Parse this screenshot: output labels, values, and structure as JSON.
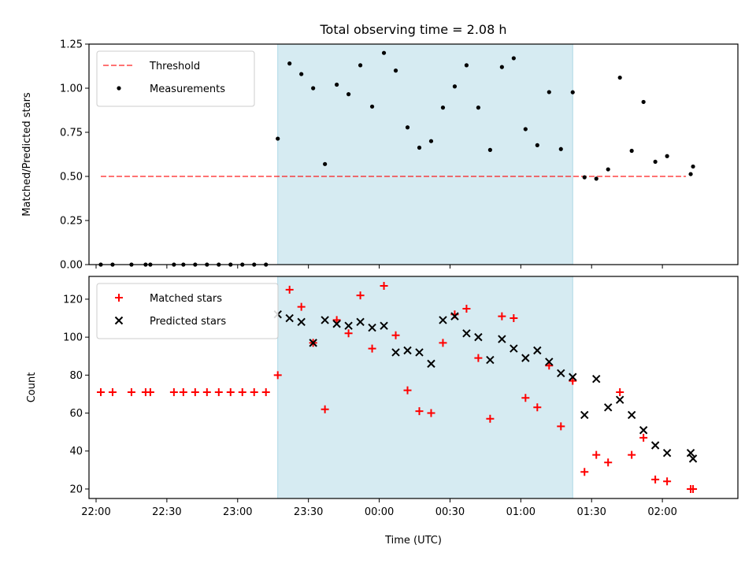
{
  "chart_data": [
    {
      "type": "scatter",
      "title": "Total observing time = 2.08 h",
      "xlabel": "",
      "ylabel": "Matched/Predicted stars",
      "x_unit": "minutes relative to 22:00 UTC",
      "xlim": [
        -3,
        272
      ],
      "ylim": [
        0,
        1.25
      ],
      "yticks": [
        0,
        0.25,
        0.5,
        0.75,
        1.0,
        1.25
      ],
      "ytick_labels": [
        "0.00",
        "0.25",
        "0.50",
        "0.75",
        "1.00",
        "1.25"
      ],
      "highlight_span": {
        "x0": 77,
        "x1": 202,
        "color": "#add8e6"
      },
      "threshold": {
        "name": "Threshold",
        "x": [
          2,
          250
        ],
        "y": 0.5,
        "color": "#ff0000"
      },
      "series": [
        {
          "name": "Measurements",
          "color": "#000000",
          "marker": "dot",
          "points": [
            [
              2,
              0
            ],
            [
              7,
              0
            ],
            [
              15,
              0
            ],
            [
              21,
              0
            ],
            [
              23,
              0
            ],
            [
              33,
              0
            ],
            [
              37,
              0
            ],
            [
              42,
              0
            ],
            [
              47,
              0
            ],
            [
              52,
              0
            ],
            [
              57,
              0
            ],
            [
              62,
              0
            ],
            [
              67,
              0
            ],
            [
              72,
              0
            ],
            [
              77,
              0.714
            ],
            [
              82,
              1.14
            ],
            [
              87,
              1.08
            ],
            [
              92,
              1.0
            ],
            [
              97,
              0.57
            ],
            [
              102,
              1.02
            ],
            [
              107,
              0.966
            ],
            [
              112,
              1.13
            ],
            [
              117,
              0.896
            ],
            [
              122,
              1.2
            ],
            [
              127,
              1.1
            ],
            [
              132,
              0.778
            ],
            [
              137,
              0.663
            ],
            [
              142,
              0.7
            ],
            [
              147,
              0.89
            ],
            [
              152,
              1.01
            ],
            [
              157,
              1.13
            ],
            [
              162,
              0.89
            ],
            [
              167,
              0.65
            ],
            [
              172,
              1.12
            ],
            [
              177,
              1.17
            ],
            [
              182,
              0.768
            ],
            [
              187,
              0.677
            ],
            [
              192,
              0.978
            ],
            [
              197,
              0.655
            ],
            [
              202,
              0.977
            ],
            [
              207,
              0.495
            ],
            [
              212,
              0.487
            ],
            [
              217,
              0.54
            ],
            [
              222,
              1.06
            ],
            [
              227,
              0.645
            ],
            [
              232,
              0.922
            ],
            [
              237,
              0.583
            ],
            [
              242,
              0.615
            ],
            [
              252,
              0.513
            ],
            [
              253,
              0.556
            ]
          ]
        }
      ]
    },
    {
      "type": "scatter",
      "title": "",
      "xlabel": "Time (UTC)",
      "ylabel": "Count",
      "x_unit": "minutes relative to 22:00 UTC",
      "xlim": [
        -3,
        272
      ],
      "ylim": [
        15,
        132
      ],
      "xticks": [
        0,
        30,
        60,
        90,
        120,
        150,
        180,
        210,
        240
      ],
      "xtick_labels": [
        "22:00",
        "22:30",
        "23:00",
        "23:30",
        "00:00",
        "00:30",
        "01:00",
        "01:30",
        "02:00"
      ],
      "yticks": [
        20,
        40,
        60,
        80,
        100,
        120
      ],
      "ytick_labels": [
        "20",
        "40",
        "60",
        "80",
        "100",
        "120"
      ],
      "highlight_span": {
        "x0": 77,
        "x1": 202,
        "color": "#add8e6"
      },
      "series": [
        {
          "name": "Matched stars",
          "color": "#ff0000",
          "marker": "plus",
          "points": [
            [
              2,
              71
            ],
            [
              7,
              71
            ],
            [
              15,
              71
            ],
            [
              21,
              71
            ],
            [
              23,
              71
            ],
            [
              33,
              71
            ],
            [
              37,
              71
            ],
            [
              42,
              71
            ],
            [
              47,
              71
            ],
            [
              52,
              71
            ],
            [
              57,
              71
            ],
            [
              62,
              71
            ],
            [
              67,
              71
            ],
            [
              72,
              71
            ],
            [
              77,
              80
            ],
            [
              82,
              125
            ],
            [
              87,
              116
            ],
            [
              92,
              97
            ],
            [
              97,
              62
            ],
            [
              102,
              109
            ],
            [
              107,
              102
            ],
            [
              112,
              122
            ],
            [
              117,
              94
            ],
            [
              122,
              127
            ],
            [
              127,
              101
            ],
            [
              132,
              72
            ],
            [
              137,
              61
            ],
            [
              142,
              60
            ],
            [
              147,
              97
            ],
            [
              152,
              112
            ],
            [
              157,
              115
            ],
            [
              162,
              89
            ],
            [
              167,
              57
            ],
            [
              172,
              111
            ],
            [
              177,
              110
            ],
            [
              182,
              68
            ],
            [
              187,
              63
            ],
            [
              192,
              85
            ],
            [
              197,
              53
            ],
            [
              202,
              77
            ],
            [
              207,
              29
            ],
            [
              212,
              38
            ],
            [
              217,
              34
            ],
            [
              222,
              71
            ],
            [
              227,
              38
            ],
            [
              232,
              47
            ],
            [
              237,
              25
            ],
            [
              242,
              24
            ],
            [
              252,
              20
            ],
            [
              253,
              20
            ]
          ]
        },
        {
          "name": "Predicted stars",
          "color": "#000000",
          "marker": "x",
          "points": [
            [
              77,
              112
            ],
            [
              82,
              110
            ],
            [
              87,
              108
            ],
            [
              92,
              97
            ],
            [
              97,
              109
            ],
            [
              102,
              107
            ],
            [
              107,
              106
            ],
            [
              112,
              108
            ],
            [
              117,
              105
            ],
            [
              122,
              106
            ],
            [
              127,
              92
            ],
            [
              132,
              93
            ],
            [
              137,
              92
            ],
            [
              142,
              86
            ],
            [
              147,
              109
            ],
            [
              152,
              111
            ],
            [
              157,
              102
            ],
            [
              162,
              100
            ],
            [
              167,
              88
            ],
            [
              172,
              99
            ],
            [
              177,
              94
            ],
            [
              182,
              89
            ],
            [
              187,
              93
            ],
            [
              192,
              87
            ],
            [
              197,
              81
            ],
            [
              202,
              79
            ],
            [
              207,
              59
            ],
            [
              212,
              78
            ],
            [
              217,
              63
            ],
            [
              222,
              67
            ],
            [
              227,
              59
            ],
            [
              232,
              51
            ],
            [
              237,
              43
            ],
            [
              242,
              39
            ],
            [
              252,
              39
            ],
            [
              253,
              36
            ]
          ]
        }
      ]
    }
  ]
}
